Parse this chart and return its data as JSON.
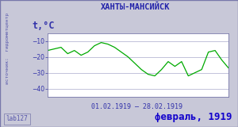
{
  "title": "ХАНТЫ-МАНСИЙСК",
  "ylabel": "t,°C",
  "xlabel": "01.02.1919 – 28.02.1919",
  "footer_left": "lab127",
  "footer_right": "февраль, 1919",
  "source_label": "источник:  гидрометцентр",
  "ylim": [
    -45,
    -5
  ],
  "yticks": [
    -40,
    -30,
    -20,
    -10
  ],
  "temps": [
    -16,
    -15,
    -14,
    -18,
    -16,
    -19,
    -17,
    -13,
    -11,
    -12,
    -14,
    -17,
    -20,
    -24,
    -28,
    -31,
    -32,
    -28,
    -23,
    -26,
    -23,
    -32,
    -30,
    -28,
    -17,
    -16,
    -22,
    -27
  ],
  "line_color": "#00aa00",
  "bg_color": "#c8c8d8",
  "plot_bg": "#ffffff",
  "border_color": "#7777aa",
  "title_color": "#2222aa",
  "label_color": "#3333aa",
  "footer_right_color": "#1100cc",
  "source_color": "#5555aa",
  "grid_color": "#aaaacc",
  "tick_label_color": "#3333aa"
}
